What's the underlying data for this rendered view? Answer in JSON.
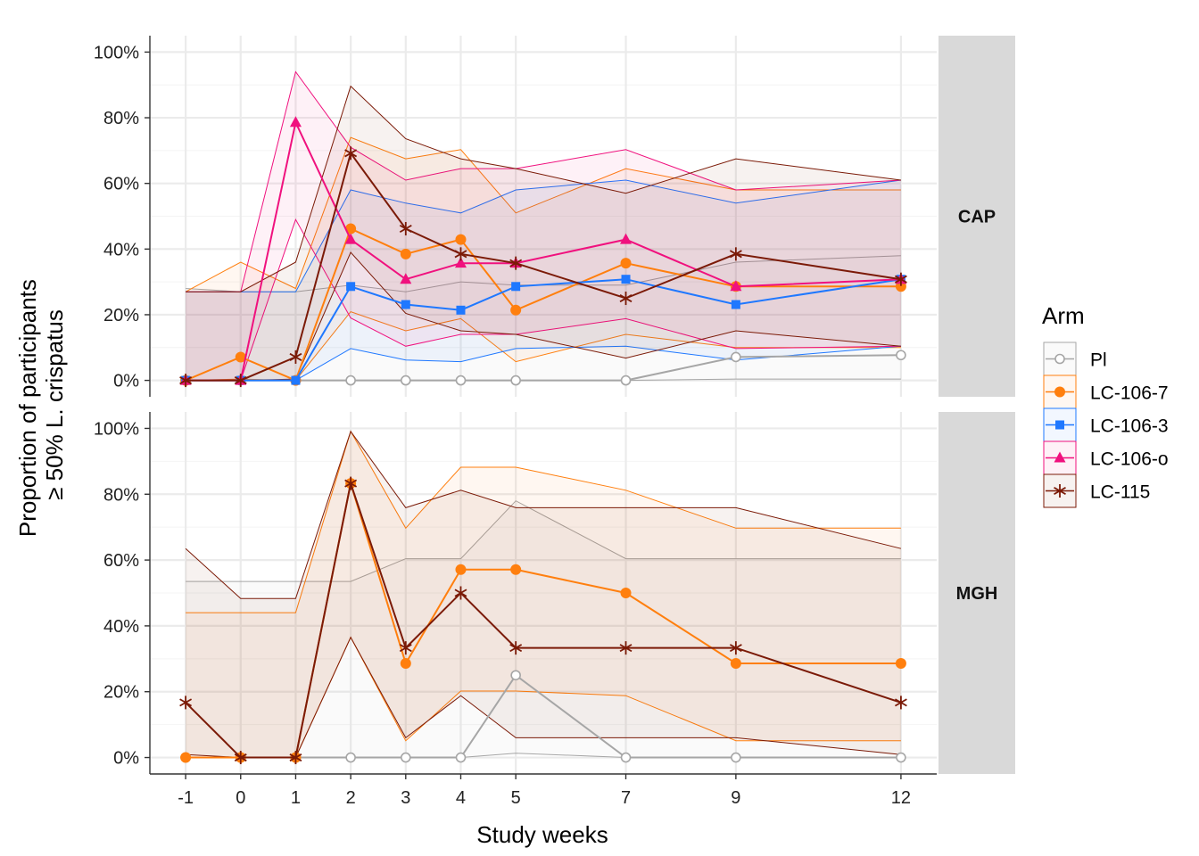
{
  "chart_data": {
    "type": "line",
    "xlabel": "Study weeks",
    "ylabel_lines": [
      "Proportion of participants",
      "≥ 50% L. crispatus"
    ],
    "x_ticks": [
      -1,
      0,
      1,
      2,
      3,
      4,
      5,
      7,
      9,
      12
    ],
    "x_tick_labels": [
      "-1",
      "0",
      "1",
      "2",
      "3",
      "4",
      "5",
      "7",
      "9",
      "12"
    ],
    "xlim": [
      -1.65,
      12.65
    ],
    "y_ticks": [
      0,
      0.2,
      0.4,
      0.6,
      0.8,
      1.0
    ],
    "y_tick_labels": [
      "0%",
      "20%",
      "40%",
      "60%",
      "80%",
      "100%"
    ],
    "ylim": [
      -0.05,
      1.05
    ],
    "grid": true,
    "legend": {
      "title": "Arm",
      "position": "right",
      "entries": [
        "Pl",
        "LC-106-7",
        "LC-106-3",
        "LC-106-o",
        "LC-115"
      ]
    },
    "series_styles": [
      {
        "name": "Pl",
        "color": "#A6A6A6",
        "marker": "open-circle"
      },
      {
        "name": "LC-106-7",
        "color": "#FF7F0E",
        "marker": "circle"
      },
      {
        "name": "LC-106-3",
        "color": "#1F78FF",
        "marker": "square"
      },
      {
        "name": "LC-106-o",
        "color": "#F0117E",
        "marker": "triangle"
      },
      {
        "name": "LC-115",
        "color": "#7B1A07",
        "marker": "asterisk"
      }
    ],
    "panels": [
      {
        "strip_label": "CAP",
        "series": [
          {
            "name": "Pl",
            "x": [
              -1,
              0,
              1,
              2,
              3,
              4,
              5,
              7,
              9,
              12
            ],
            "y": [
              0,
              0,
              0,
              0,
              0,
              0,
              0,
              0,
              0.071,
              0.077
            ],
            "lower": [
              0,
              0,
              0,
              0,
              0,
              0,
              0,
              0,
              0.004,
              0.004
            ],
            "upper": [
              0.28,
              0.27,
              0.27,
              0.29,
              0.27,
              0.3,
              0.29,
              0.29,
              0.36,
              0.38
            ]
          },
          {
            "name": "LC-106-7",
            "x": [
              -1,
              0,
              1,
              2,
              3,
              4,
              5,
              7,
              9,
              12
            ],
            "y": [
              0,
              0.071,
              0,
              0.462,
              0.385,
              0.429,
              0.214,
              0.357,
              0.286,
              0.286
            ],
            "lower": [
              0,
              0.004,
              0,
              0.209,
              0.151,
              0.188,
              0.057,
              0.14,
              0.1,
              0.1
            ],
            "upper": [
              0.27,
              0.36,
              0.28,
              0.74,
              0.675,
              0.703,
              0.51,
              0.645,
              0.58,
              0.58
            ]
          },
          {
            "name": "LC-106-3",
            "x": [
              -1,
              0,
              1,
              2,
              3,
              4,
              5,
              7,
              9,
              12
            ],
            "y": [
              0,
              0,
              0,
              0.286,
              0.231,
              0.214,
              0.286,
              0.308,
              0.231,
              0.308
            ],
            "lower": [
              0,
              0,
              0,
              0.097,
              0.062,
              0.057,
              0.097,
              0.104,
              0.062,
              0.104
            ],
            "upper": [
              0.27,
              0.27,
              0.27,
              0.58,
              0.54,
              0.51,
              0.58,
              0.61,
              0.54,
              0.61
            ]
          },
          {
            "name": "LC-106-o",
            "x": [
              -1,
              0,
              1,
              2,
              3,
              4,
              5,
              7,
              9,
              12
            ],
            "y": [
              0,
              0,
              0.786,
              0.429,
              0.308,
              0.357,
              0.357,
              0.429,
              0.286,
              0.308
            ],
            "lower": [
              0,
              0,
              0.49,
              0.19,
              0.104,
              0.14,
              0.14,
              0.188,
              0.097,
              0.104
            ],
            "upper": [
              0.27,
              0.27,
              0.94,
              0.71,
              0.61,
              0.645,
              0.645,
              0.703,
              0.58,
              0.61
            ]
          },
          {
            "name": "LC-115",
            "x": [
              -1,
              0,
              1,
              2,
              3,
              4,
              5,
              7,
              9,
              12
            ],
            "y": [
              0,
              0,
              0.071,
              0.692,
              0.462,
              0.385,
              0.357,
              0.25,
              0.385,
              0.308
            ],
            "lower": [
              0,
              0,
              0.004,
              0.39,
              0.204,
              0.151,
              0.14,
              0.068,
              0.151,
              0.104
            ],
            "upper": [
              0.27,
              0.27,
              0.36,
              0.896,
              0.736,
              0.675,
              0.645,
              0.57,
              0.675,
              0.61
            ]
          }
        ]
      },
      {
        "strip_label": "MGH",
        "series": [
          {
            "name": "Pl",
            "x": [
              -1,
              0,
              1,
              2,
              3,
              4,
              5,
              7,
              9,
              12
            ],
            "y": [
              0,
              0,
              0,
              0,
              0,
              0,
              0.25,
              0,
              0,
              0
            ],
            "lower": [
              0,
              0,
              0,
              0,
              0,
              0,
              0.013,
              0,
              0,
              0
            ],
            "upper": [
              0.535,
              0.535,
              0.535,
              0.535,
              0.604,
              0.604,
              0.78,
              0.604,
              0.604,
              0.604
            ]
          },
          {
            "name": "LC-106-7",
            "x": [
              -1,
              0,
              1,
              2,
              3,
              4,
              5,
              7,
              9,
              12
            ],
            "y": [
              0,
              0,
              0,
              0.833,
              0.286,
              0.571,
              0.571,
              0.5,
              0.286,
              0.286
            ],
            "lower": [
              0,
              0,
              0,
              0.365,
              0.051,
              0.202,
              0.202,
              0.188,
              0.051,
              0.051
            ],
            "upper": [
              0.44,
              0.44,
              0.44,
              0.991,
              0.697,
              0.882,
              0.882,
              0.812,
              0.697,
              0.697
            ]
          },
          {
            "name": "LC-115",
            "x": [
              -1,
              0,
              1,
              2,
              3,
              4,
              5,
              7,
              9,
              12
            ],
            "y": [
              0.167,
              0,
              0,
              0.833,
              0.333,
              0.5,
              0.333,
              0.333,
              0.333,
              0.167
            ],
            "lower": [
              0.009,
              0,
              0,
              0.365,
              0.06,
              0.188,
              0.06,
              0.06,
              0.06,
              0.009
            ],
            "upper": [
              0.635,
              0.483,
              0.483,
              0.991,
              0.759,
              0.812,
              0.759,
              0.759,
              0.759,
              0.635
            ]
          }
        ]
      }
    ]
  }
}
